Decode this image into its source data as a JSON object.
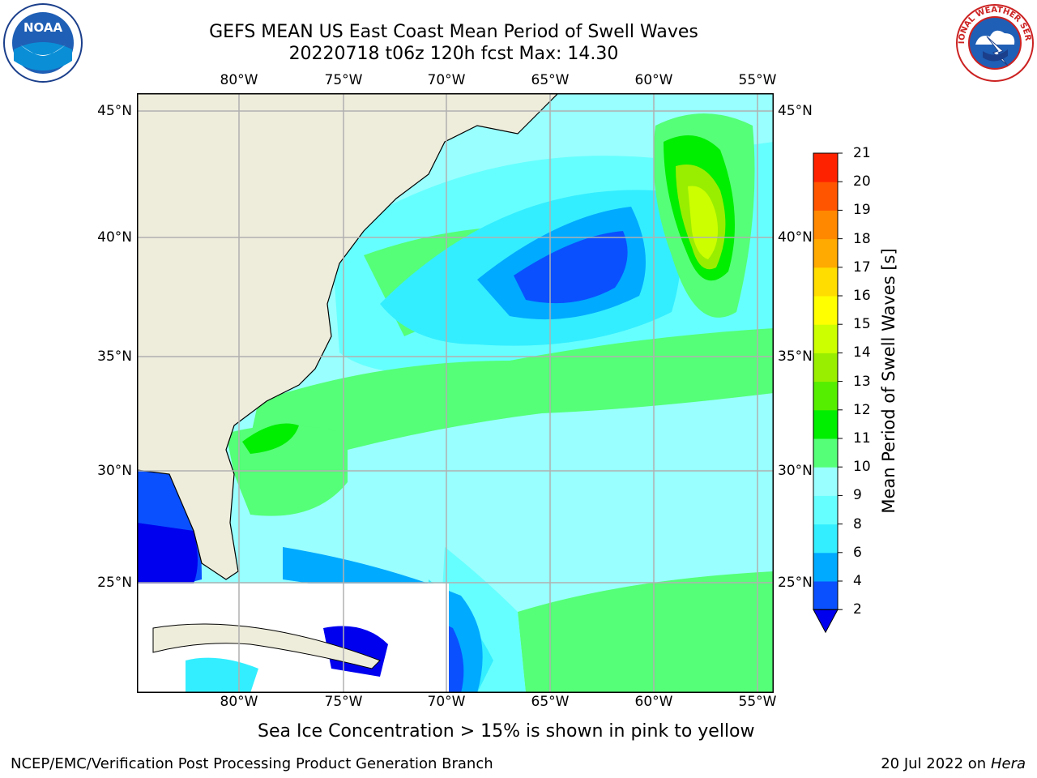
{
  "header": {
    "title_line1": "GEFS MEAN US East Coast Mean Period of Swell Waves",
    "title_line2": "20220718 t06z 120h fcst   Max: 14.30"
  },
  "map": {
    "lon_ticks": [
      "80°W",
      "75°W",
      "70°W",
      "65°W",
      "60°W",
      "55°W"
    ],
    "lat_ticks": [
      "45°N",
      "40°N",
      "35°N",
      "30°N",
      "25°N"
    ],
    "colors": {
      "land": "#eeeddc",
      "grid": "#b0b0b0",
      "coast": "#000000",
      "no_data": "#ffffff"
    }
  },
  "colorbar": {
    "title": "Mean Period of Swell Waves [s]",
    "labels": [
      "2",
      "4",
      "6",
      "8",
      "9",
      "10",
      "11",
      "12",
      "13",
      "14",
      "15",
      "16",
      "17",
      "18",
      "19",
      "20",
      "21"
    ],
    "colors": [
      "#0a50ff",
      "#00aaff",
      "#33eeff",
      "#66ffff",
      "#99ffff",
      "#55ff77",
      "#00ee00",
      "#55ee00",
      "#99ee00",
      "#ccff00",
      "#ffff00",
      "#ffdd00",
      "#ffaa00",
      "#ff8800",
      "#ff5500",
      "#ff2200"
    ],
    "under_color": "#0000ee"
  },
  "notes": {
    "ice": "Sea Ice Concentration > 15% is shown in pink to yellow"
  },
  "footer": {
    "left": "NCEP/EMC/Verification Post Processing Product Generation Branch",
    "date": "20 Jul 2022 on ",
    "machine": "Hera"
  },
  "logos": {
    "noaa_text": "NOAA",
    "nws_text": "NATIONAL WEATHER SERVICE"
  }
}
